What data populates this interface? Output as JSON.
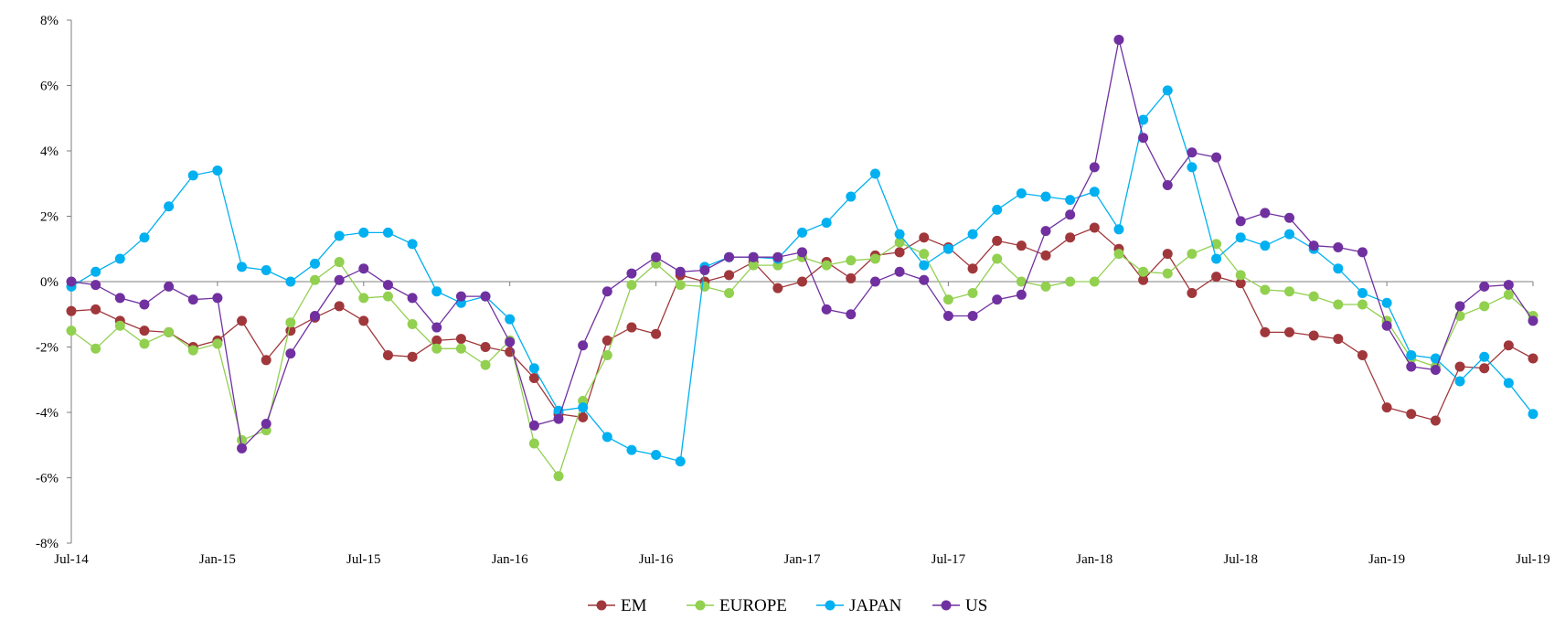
{
  "chart_data": {
    "type": "line",
    "title": "",
    "xlabel": "",
    "ylabel": "",
    "ylim": [
      -8,
      8
    ],
    "y_ticks": [
      -8,
      -6,
      -4,
      -2,
      0,
      2,
      4,
      6,
      8
    ],
    "y_tick_labels": [
      "-8%",
      "-6%",
      "-4%",
      "-2%",
      "0%",
      "2%",
      "4%",
      "6%",
      "8%"
    ],
    "x_tick_labels": [
      "Jul-14",
      "Jan-15",
      "Jul-15",
      "Jan-16",
      "Jul-16",
      "Jan-17",
      "Jul-17",
      "Jan-18",
      "Jul-18",
      "Jan-19",
      "Jul-19"
    ],
    "x": [
      "Jul-14",
      "Aug-14",
      "Sep-14",
      "Oct-14",
      "Nov-14",
      "Dec-14",
      "Jan-15",
      "Feb-15",
      "Mar-15",
      "Apr-15",
      "May-15",
      "Jun-15",
      "Jul-15",
      "Aug-15",
      "Sep-15",
      "Oct-15",
      "Nov-15",
      "Dec-15",
      "Jan-16",
      "Feb-16",
      "Mar-16",
      "Apr-16",
      "May-16",
      "Jun-16",
      "Jul-16",
      "Aug-16",
      "Sep-16",
      "Oct-16",
      "Nov-16",
      "Dec-16",
      "Jan-17",
      "Feb-17",
      "Mar-17",
      "Apr-17",
      "May-17",
      "Jun-17",
      "Jul-17",
      "Aug-17",
      "Sep-17",
      "Oct-17",
      "Nov-17",
      "Dec-17",
      "Jan-18",
      "Feb-18",
      "Mar-18",
      "Apr-18",
      "May-18",
      "Jun-18",
      "Jul-18",
      "Aug-18",
      "Sep-18",
      "Oct-18",
      "Nov-18",
      "Dec-18",
      "Jan-19",
      "Feb-19",
      "Mar-19",
      "Apr-19",
      "May-19",
      "Jun-19",
      "Jul-19"
    ],
    "grid": false,
    "legend_position": "bottom-center",
    "series": [
      {
        "name": "EM",
        "color": "#a0373b",
        "values": [
          -0.9,
          -0.85,
          -1.2,
          -1.5,
          -1.55,
          -2.0,
          -1.8,
          -1.2,
          -2.4,
          -1.5,
          -1.1,
          -0.75,
          -1.2,
          -2.25,
          -2.3,
          -1.8,
          -1.75,
          -2.0,
          -2.15,
          -2.95,
          -4.05,
          -4.15,
          -1.8,
          -1.4,
          -1.6,
          0.2,
          0.0,
          0.2,
          0.6,
          -0.2,
          0.0,
          0.6,
          0.1,
          0.8,
          0.9,
          1.35,
          1.05,
          0.4,
          1.25,
          1.1,
          0.8,
          1.35,
          1.65,
          1.0,
          0.05,
          0.85,
          -0.35,
          0.15,
          -0.05,
          -1.55,
          -1.55,
          -1.65,
          -1.75,
          -2.25,
          -3.85,
          -4.05,
          -4.25,
          -2.6,
          -2.65,
          -1.95,
          -2.35
        ]
      },
      {
        "name": "EUROPE",
        "color": "#92d050",
        "values": [
          -1.5,
          -2.05,
          -1.35,
          -1.9,
          -1.55,
          -2.1,
          -1.9,
          -4.85,
          -4.55,
          -1.25,
          0.05,
          0.6,
          -0.5,
          -0.45,
          -1.3,
          -2.05,
          -2.05,
          -2.55,
          -1.8,
          -4.95,
          -5.95,
          -3.65,
          -2.25,
          -0.1,
          0.55,
          -0.1,
          -0.15,
          -0.35,
          0.5,
          0.5,
          0.75,
          0.5,
          0.65,
          0.7,
          1.2,
          0.85,
          -0.55,
          -0.35,
          0.7,
          0.0,
          -0.15,
          0.0,
          0.0,
          0.85,
          0.3,
          0.25,
          0.85,
          1.15,
          0.2,
          -0.25,
          -0.3,
          -0.45,
          -0.7,
          -0.7,
          -1.2,
          -2.35,
          -2.6,
          -1.05,
          -0.75,
          -0.4,
          -1.05
        ]
      },
      {
        "name": "JAPAN",
        "color": "#00b0f0",
        "values": [
          -0.15,
          0.3,
          0.7,
          1.35,
          2.3,
          3.25,
          3.4,
          0.45,
          0.35,
          0.0,
          0.55,
          1.4,
          1.5,
          1.5,
          1.15,
          -0.3,
          -0.65,
          -0.45,
          -1.15,
          -2.65,
          -3.95,
          -3.85,
          -4.75,
          -5.15,
          -5.3,
          -5.5,
          0.45,
          0.75,
          0.75,
          0.7,
          1.5,
          1.8,
          2.6,
          3.3,
          1.45,
          0.5,
          1.0,
          1.45,
          2.2,
          2.7,
          2.6,
          2.5,
          2.75,
          1.6,
          4.95,
          5.85,
          3.5,
          0.7,
          1.35,
          1.1,
          1.45,
          1.0,
          0.4,
          -0.35,
          -0.65,
          -2.25,
          -2.35,
          -3.05,
          -2.3,
          -3.1,
          -4.05
        ]
      },
      {
        "name": "US",
        "color": "#7030a0",
        "values": [
          0.0,
          -0.1,
          -0.5,
          -0.7,
          -0.15,
          -0.55,
          -0.5,
          -5.1,
          -4.35,
          -2.2,
          -1.05,
          0.05,
          0.4,
          -0.1,
          -0.5,
          -1.4,
          -0.45,
          -0.45,
          -1.85,
          -4.4,
          -4.2,
          -1.95,
          -0.3,
          0.25,
          0.75,
          0.3,
          0.35,
          0.75,
          0.75,
          0.75,
          0.9,
          -0.85,
          -1.0,
          0.0,
          0.3,
          0.05,
          -1.05,
          -1.05,
          -0.55,
          -0.4,
          1.55,
          2.05,
          3.5,
          7.4,
          4.4,
          2.95,
          3.95,
          3.8,
          1.85,
          2.1,
          1.95,
          1.1,
          1.05,
          0.9,
          -1.35,
          -2.6,
          -2.7,
          -0.75,
          -0.15,
          -0.1,
          -1.2
        ]
      }
    ]
  }
}
